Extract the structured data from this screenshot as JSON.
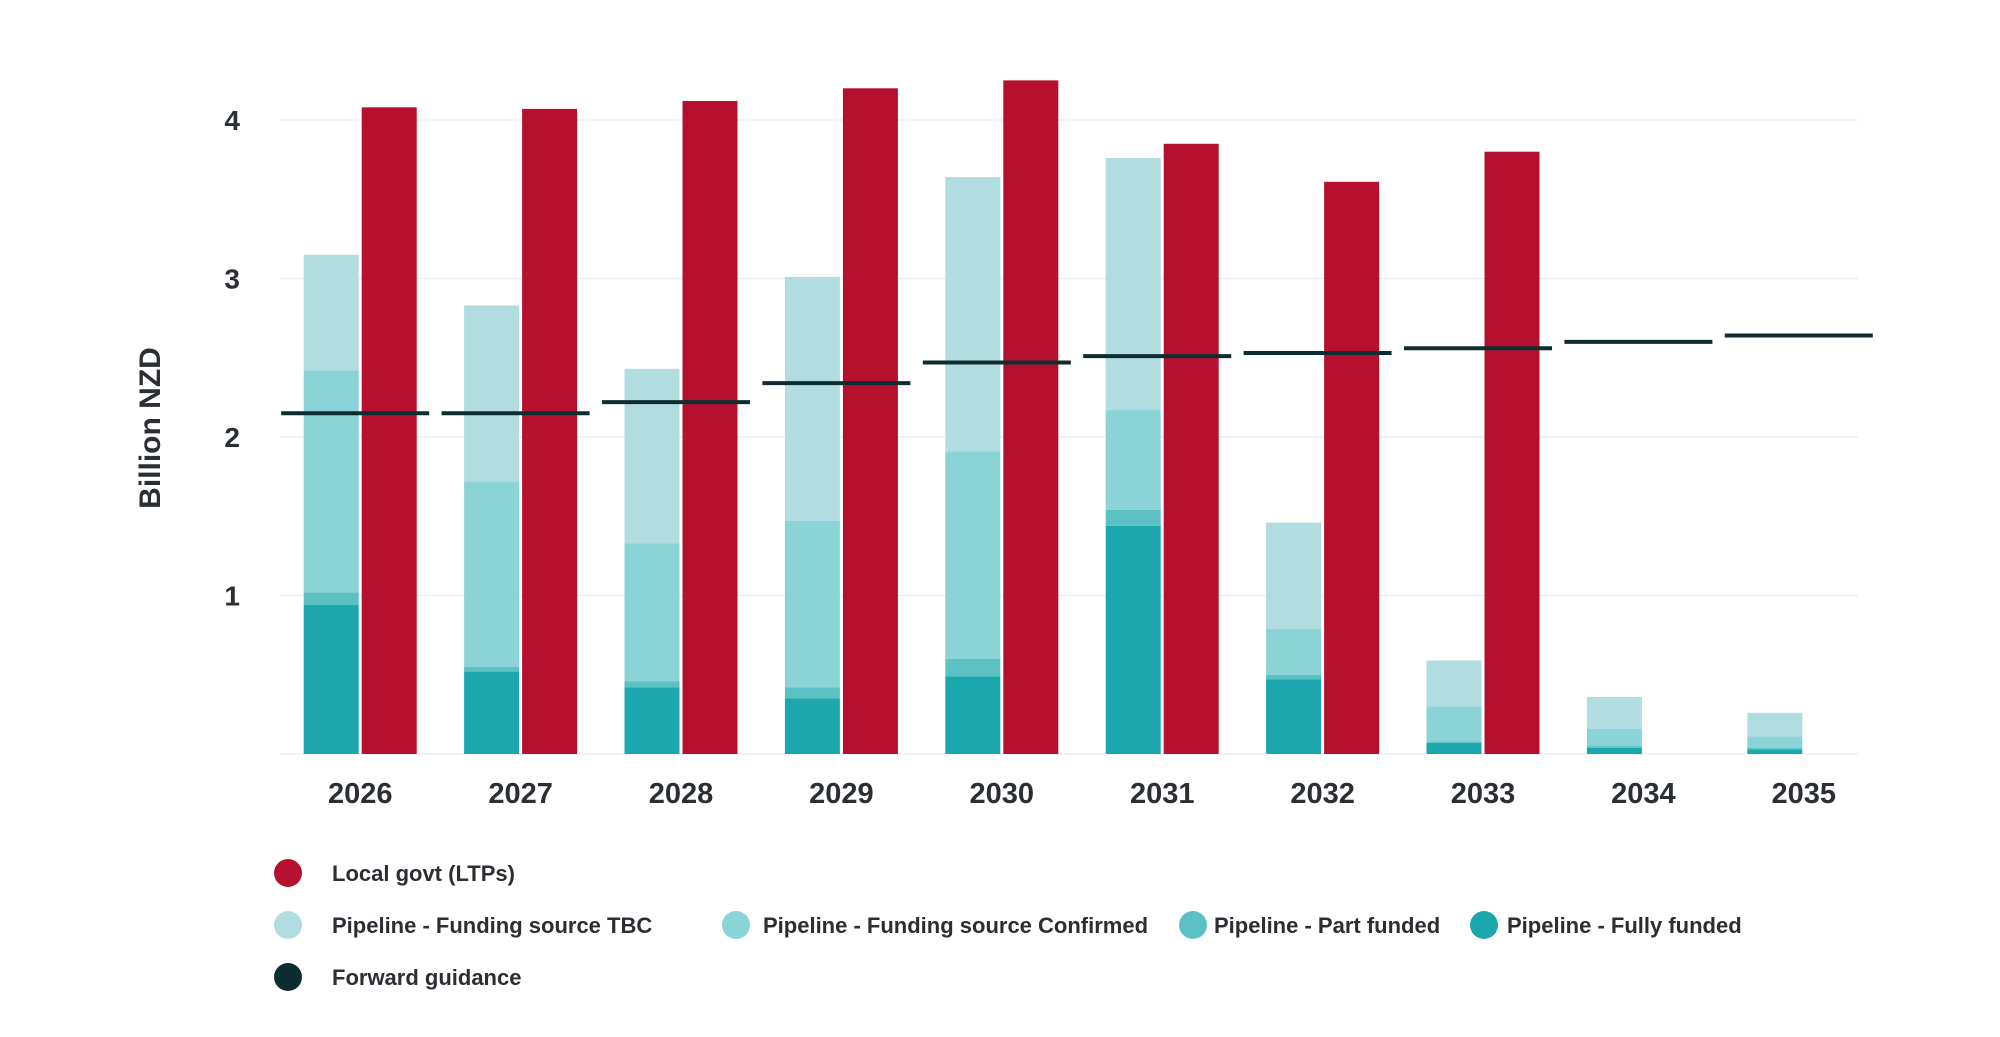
{
  "chart_data": {
    "type": "bar",
    "ylabel": "Billion NZD",
    "xlabel": "",
    "title": "",
    "ylim": [
      0,
      4.3
    ],
    "yticks": [
      1,
      2,
      3,
      4
    ],
    "grid": true,
    "categories": [
      "2026",
      "2027",
      "2028",
      "2029",
      "2030",
      "2031",
      "2032",
      "2033",
      "2034",
      "2035"
    ],
    "stacked_series": [
      {
        "name": "Pipeline - Fully funded",
        "color": "#1ca7af",
        "values": [
          0.94,
          0.52,
          0.42,
          0.35,
          0.49,
          1.44,
          0.47,
          0.07,
          0.04,
          0.03
        ]
      },
      {
        "name": "Pipeline - Part funded",
        "color": "#5bc1c5",
        "values": [
          0.08,
          0.03,
          0.04,
          0.07,
          0.11,
          0.1,
          0.03,
          0.01,
          0.01,
          0.01
        ]
      },
      {
        "name": "Pipeline - Funding source Confirmed",
        "color": "#8ad3d7",
        "values": [
          1.4,
          1.17,
          0.87,
          1.05,
          1.31,
          0.63,
          0.29,
          0.22,
          0.11,
          0.07
        ]
      },
      {
        "name": "Pipeline - Funding source TBC",
        "color": "#b2dde0",
        "values": [
          0.73,
          1.11,
          1.1,
          1.54,
          1.73,
          1.59,
          0.67,
          0.29,
          0.2,
          0.15
        ]
      }
    ],
    "series": [
      {
        "name": "Local govt (LTPs)",
        "color": "#b5112f",
        "type": "bar",
        "values": [
          4.08,
          4.07,
          4.12,
          4.2,
          4.25,
          3.85,
          3.61,
          3.8,
          null,
          null
        ]
      },
      {
        "name": "Forward guidance",
        "color": "#0d2e31",
        "type": "marker-line",
        "values": [
          2.15,
          2.15,
          2.22,
          2.34,
          2.47,
          2.51,
          2.53,
          2.56,
          2.6,
          2.64
        ]
      }
    ],
    "legend": {
      "placement": "bottom-left",
      "items": [
        {
          "label": "Local govt (LTPs)",
          "color": "#b5112f"
        },
        {
          "label": "Pipeline - Funding source TBC",
          "color": "#b2dde0"
        },
        {
          "label": "Pipeline - Funding source Confirmed",
          "color": "#8ad3d7"
        },
        {
          "label": "Pipeline - Part funded",
          "color": "#5bc1c5"
        },
        {
          "label": "Pipeline - Fully funded",
          "color": "#1ca7af"
        },
        {
          "label": "Forward guidance",
          "color": "#0d2e31"
        }
      ]
    }
  }
}
